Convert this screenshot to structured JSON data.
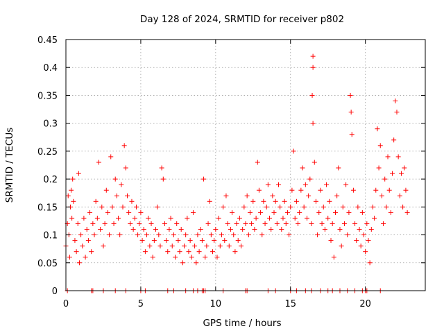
{
  "chart_data": {
    "type": "scatter",
    "title": "Day 128 of 2024, SRMTID for receiver p802",
    "xlabel": "GPS time / hours",
    "ylabel": "SRMTID / TECUs",
    "xlim": [
      0,
      24
    ],
    "ylim": [
      0,
      0.45
    ],
    "grid": true,
    "marker": "+",
    "color": "#ff0000",
    "x_ticks": [
      0,
      5,
      10,
      15,
      20
    ],
    "y_ticks": [
      0,
      0.05,
      0.1,
      0.15,
      0.2,
      0.25,
      0.3,
      0.35,
      0.4,
      0.45
    ],
    "x_tick_labels": [
      "0",
      "5",
      "10",
      "15",
      "20"
    ],
    "y_tick_labels": [
      "0",
      "0.05",
      "0.1",
      "0.15",
      "0.2",
      "0.25",
      "0.3",
      "0.35",
      "0.4",
      "0.45"
    ],
    "series": [
      {
        "name": "SRMTID",
        "points": [
          [
            0.0,
            0.08
          ],
          [
            0.1,
            0.12
          ],
          [
            0.15,
            0.17
          ],
          [
            0.2,
            0.1
          ],
          [
            0.25,
            0.06
          ],
          [
            0.3,
            0.15
          ],
          [
            0.35,
            0.18
          ],
          [
            0.4,
            0.13
          ],
          [
            0.45,
            0.2
          ],
          [
            0.5,
            0.16
          ],
          [
            0.6,
            0.09
          ],
          [
            0.7,
            0.07
          ],
          [
            0.8,
            0.12
          ],
          [
            0.85,
            0.21
          ],
          [
            0.9,
            0.05
          ],
          [
            1.0,
            0.1
          ],
          [
            1.1,
            0.08
          ],
          [
            1.2,
            0.13
          ],
          [
            1.3,
            0.06
          ],
          [
            1.4,
            0.11
          ],
          [
            1.5,
            0.09
          ],
          [
            1.6,
            0.14
          ],
          [
            1.7,
            0.07
          ],
          [
            1.8,
            0.12
          ],
          [
            1.9,
            0.1
          ],
          [
            2.0,
            0.16
          ],
          [
            2.1,
            0.13
          ],
          [
            2.2,
            0.23
          ],
          [
            2.3,
            0.11
          ],
          [
            2.4,
            0.15
          ],
          [
            2.5,
            0.08
          ],
          [
            2.6,
            0.12
          ],
          [
            2.7,
            0.18
          ],
          [
            2.8,
            0.14
          ],
          [
            2.9,
            0.1
          ],
          [
            3.0,
            0.24
          ],
          [
            3.1,
            0.15
          ],
          [
            3.2,
            0.12
          ],
          [
            3.3,
            0.2
          ],
          [
            3.4,
            0.17
          ],
          [
            3.5,
            0.13
          ],
          [
            3.6,
            0.1
          ],
          [
            3.7,
            0.19
          ],
          [
            3.8,
            0.15
          ],
          [
            3.9,
            0.26
          ],
          [
            4.0,
            0.22
          ],
          [
            4.1,
            0.17
          ],
          [
            4.2,
            0.14
          ],
          [
            4.3,
            0.12
          ],
          [
            4.4,
            0.16
          ],
          [
            4.5,
            0.11
          ],
          [
            4.6,
            0.13
          ],
          [
            4.7,
            0.15
          ],
          [
            4.8,
            0.1
          ],
          [
            4.9,
            0.12
          ],
          [
            5.0,
            0.14
          ],
          [
            5.1,
            0.09
          ],
          [
            5.2,
            0.11
          ],
          [
            5.3,
            0.07
          ],
          [
            5.4,
            0.1
          ],
          [
            5.5,
            0.13
          ],
          [
            5.6,
            0.08
          ],
          [
            5.7,
            0.12
          ],
          [
            5.8,
            0.06
          ],
          [
            5.9,
            0.09
          ],
          [
            6.0,
            0.11
          ],
          [
            6.1,
            0.15
          ],
          [
            6.2,
            0.1
          ],
          [
            6.3,
            0.08
          ],
          [
            6.4,
            0.22
          ],
          [
            6.5,
            0.2
          ],
          [
            6.6,
            0.12
          ],
          [
            6.7,
            0.09
          ],
          [
            6.8,
            0.07
          ],
          [
            6.9,
            0.11
          ],
          [
            7.0,
            0.13
          ],
          [
            7.1,
            0.08
          ],
          [
            7.2,
            0.1
          ],
          [
            7.3,
            0.06
          ],
          [
            7.4,
            0.12
          ],
          [
            7.5,
            0.09
          ],
          [
            7.6,
            0.07
          ],
          [
            7.7,
            0.11
          ],
          [
            7.8,
            0.05
          ],
          [
            7.9,
            0.08
          ],
          [
            8.0,
            0.1
          ],
          [
            8.1,
            0.13
          ],
          [
            8.2,
            0.07
          ],
          [
            8.3,
            0.09
          ],
          [
            8.4,
            0.06
          ],
          [
            8.5,
            0.14
          ],
          [
            8.6,
            0.08
          ],
          [
            8.7,
            0.05
          ],
          [
            8.8,
            0.1
          ],
          [
            8.9,
            0.07
          ],
          [
            9.0,
            0.11
          ],
          [
            9.1,
            0.09
          ],
          [
            9.2,
            0.2
          ],
          [
            9.3,
            0.06
          ],
          [
            9.4,
            0.08
          ],
          [
            9.5,
            0.12
          ],
          [
            9.6,
            0.16
          ],
          [
            9.7,
            0.1
          ],
          [
            9.8,
            0.07
          ],
          [
            9.9,
            0.09
          ],
          [
            10.0,
            0.11
          ],
          [
            10.1,
            0.06
          ],
          [
            10.2,
            0.13
          ],
          [
            10.3,
            0.08
          ],
          [
            10.4,
            0.1
          ],
          [
            10.5,
            0.15
          ],
          [
            10.6,
            0.09
          ],
          [
            10.7,
            0.17
          ],
          [
            10.8,
            0.12
          ],
          [
            10.9,
            0.08
          ],
          [
            11.0,
            0.11
          ],
          [
            11.1,
            0.14
          ],
          [
            11.2,
            0.1
          ],
          [
            11.3,
            0.07
          ],
          [
            11.4,
            0.12
          ],
          [
            11.5,
            0.09
          ],
          [
            11.6,
            0.13
          ],
          [
            11.7,
            0.08
          ],
          [
            11.8,
            0.11
          ],
          [
            11.9,
            0.15
          ],
          [
            12.0,
            0.12
          ],
          [
            12.1,
            0.17
          ],
          [
            12.2,
            0.1
          ],
          [
            12.3,
            0.14
          ],
          [
            12.4,
            0.12
          ],
          [
            12.5,
            0.16
          ],
          [
            12.6,
            0.11
          ],
          [
            12.7,
            0.13
          ],
          [
            12.8,
            0.23
          ],
          [
            12.9,
            0.18
          ],
          [
            13.0,
            0.14
          ],
          [
            13.1,
            0.1
          ],
          [
            13.2,
            0.16
          ],
          [
            13.3,
            0.12
          ],
          [
            13.4,
            0.15
          ],
          [
            13.5,
            0.19
          ],
          [
            13.6,
            0.13
          ],
          [
            13.7,
            0.11
          ],
          [
            13.8,
            0.17
          ],
          [
            13.9,
            0.14
          ],
          [
            14.0,
            0.16
          ],
          [
            14.1,
            0.12
          ],
          [
            14.2,
            0.19
          ],
          [
            14.3,
            0.15
          ],
          [
            14.4,
            0.11
          ],
          [
            14.5,
            0.13
          ],
          [
            14.6,
            0.16
          ],
          [
            14.7,
            0.12
          ],
          [
            14.8,
            0.14
          ],
          [
            14.9,
            0.1
          ],
          [
            15.0,
            0.15
          ],
          [
            15.1,
            0.18
          ],
          [
            15.2,
            0.25
          ],
          [
            15.3,
            0.13
          ],
          [
            15.4,
            0.16
          ],
          [
            15.5,
            0.12
          ],
          [
            15.6,
            0.14
          ],
          [
            15.7,
            0.18
          ],
          [
            15.8,
            0.22
          ],
          [
            15.9,
            0.15
          ],
          [
            16.0,
            0.19
          ],
          [
            16.1,
            0.13
          ],
          [
            16.2,
            0.17
          ],
          [
            16.3,
            0.2
          ],
          [
            16.4,
            0.12
          ],
          [
            16.5,
            0.42
          ],
          [
            16.5,
            0.4
          ],
          [
            16.45,
            0.35
          ],
          [
            16.5,
            0.3
          ],
          [
            16.6,
            0.23
          ],
          [
            16.7,
            0.16
          ],
          [
            16.8,
            0.1
          ],
          [
            16.9,
            0.14
          ],
          [
            17.0,
            0.18
          ],
          [
            17.1,
            0.12
          ],
          [
            17.2,
            0.15
          ],
          [
            17.3,
            0.11
          ],
          [
            17.4,
            0.19
          ],
          [
            17.5,
            0.13
          ],
          [
            17.6,
            0.16
          ],
          [
            17.7,
            0.09
          ],
          [
            17.8,
            0.12
          ],
          [
            17.9,
            0.06
          ],
          [
            18.0,
            0.14
          ],
          [
            18.1,
            0.17
          ],
          [
            18.2,
            0.22
          ],
          [
            18.3,
            0.11
          ],
          [
            18.4,
            0.08
          ],
          [
            18.5,
            0.15
          ],
          [
            18.6,
            0.12
          ],
          [
            18.7,
            0.19
          ],
          [
            18.8,
            0.1
          ],
          [
            18.9,
            0.14
          ],
          [
            19.0,
            0.35
          ],
          [
            19.05,
            0.32
          ],
          [
            19.1,
            0.28
          ],
          [
            19.2,
            0.18
          ],
          [
            19.3,
            0.12
          ],
          [
            19.4,
            0.09
          ],
          [
            19.5,
            0.15
          ],
          [
            19.6,
            0.11
          ],
          [
            19.7,
            0.08
          ],
          [
            19.8,
            0.14
          ],
          [
            19.9,
            0.1
          ],
          [
            20.0,
            0.07
          ],
          [
            20.1,
            0.12
          ],
          [
            20.2,
            0.09
          ],
          [
            20.3,
            0.05
          ],
          [
            20.4,
            0.11
          ],
          [
            20.5,
            0.15
          ],
          [
            20.6,
            0.13
          ],
          [
            20.7,
            0.18
          ],
          [
            20.8,
            0.29
          ],
          [
            20.9,
            0.22
          ],
          [
            21.0,
            0.26
          ],
          [
            21.1,
            0.17
          ],
          [
            21.2,
            0.12
          ],
          [
            21.3,
            0.2
          ],
          [
            21.4,
            0.15
          ],
          [
            21.5,
            0.24
          ],
          [
            21.6,
            0.18
          ],
          [
            21.7,
            0.14
          ],
          [
            21.8,
            0.21
          ],
          [
            21.9,
            0.27
          ],
          [
            22.0,
            0.34
          ],
          [
            22.1,
            0.32
          ],
          [
            22.2,
            0.24
          ],
          [
            22.3,
            0.17
          ],
          [
            22.4,
            0.21
          ],
          [
            22.5,
            0.15
          ],
          [
            22.6,
            0.22
          ],
          [
            22.7,
            0.18
          ],
          [
            22.8,
            0.14
          ]
        ]
      }
    ],
    "baseline_zero_points_x": [
      0.1,
      1.7,
      1.8,
      2.5,
      3.3,
      4.0,
      5.0,
      5.3,
      6.8,
      7.2,
      8.0,
      8.5,
      8.8,
      9.1,
      9.2,
      9.3,
      10.5,
      12.0,
      12.1,
      13.5,
      14.0,
      15.0,
      15.4,
      16.0,
      16.4,
      17.0,
      17.5,
      17.8,
      18.3,
      18.8,
      19.3,
      19.8,
      20.0,
      20.1,
      21.0
    ]
  }
}
